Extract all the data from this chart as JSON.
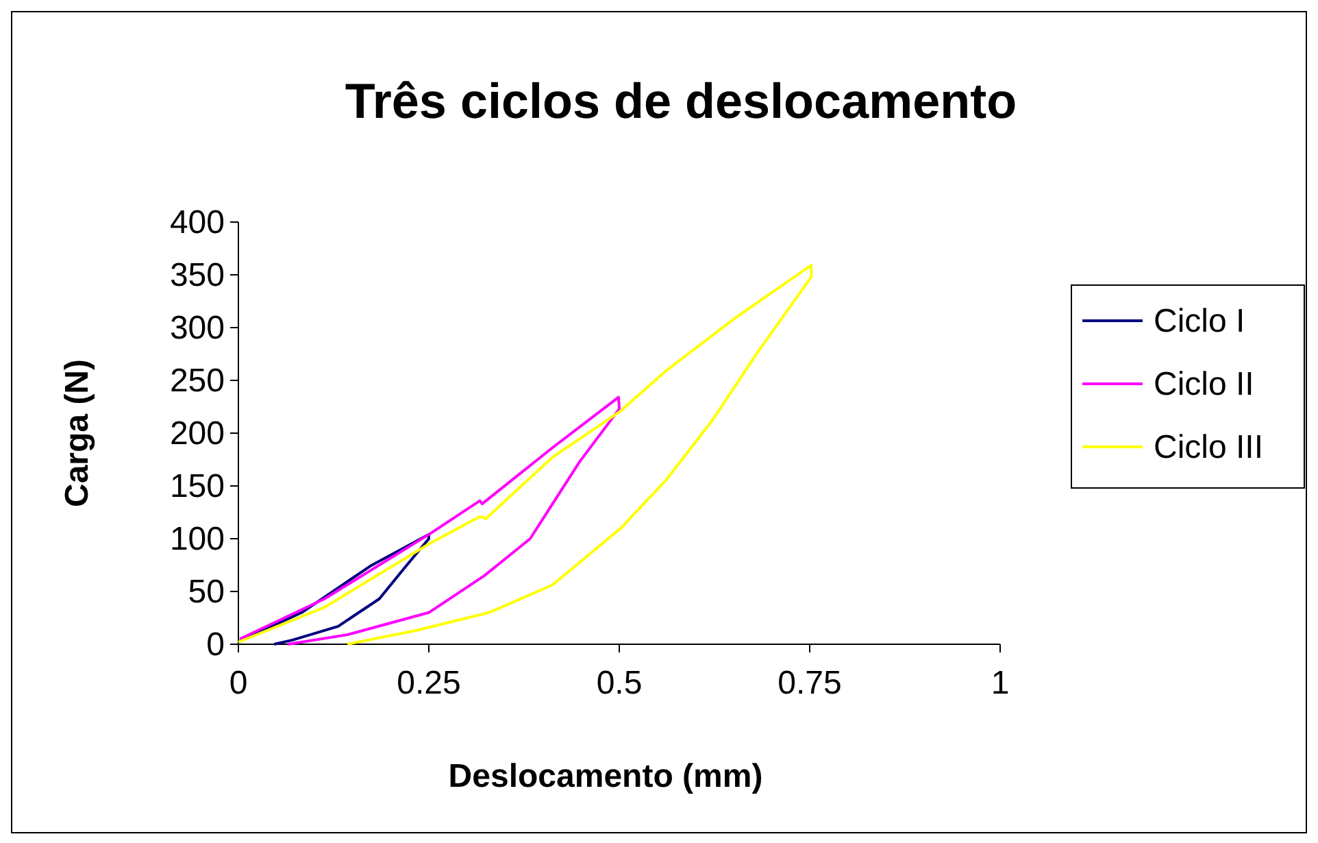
{
  "chart_data": {
    "type": "line",
    "title": "Três ciclos de deslocamento",
    "xlabel": "Deslocamento (mm)",
    "ylabel": "Carga (N)",
    "xlim": [
      0,
      1
    ],
    "xticks": [
      0,
      0.25,
      0.5,
      0.75,
      1
    ],
    "ylim": [
      0,
      400
    ],
    "yticks": [
      0,
      50,
      100,
      150,
      200,
      250,
      300,
      350,
      400
    ],
    "grid": false,
    "legend": "right",
    "marker": "none",
    "line_style": "solid",
    "series": [
      {
        "name": "Ciclo I",
        "color": "#000080",
        "x": [
          0.002,
          0.083,
          0.173,
          0.25,
          0.25,
          0.22,
          0.185,
          0.131,
          0.071,
          0.047
        ],
        "values": [
          3,
          30,
          74,
          104,
          100,
          74,
          43,
          17,
          4,
          0
        ]
      },
      {
        "name": "Ciclo II",
        "color": "#ff00ff",
        "x": [
          0.002,
          0.113,
          0.25,
          0.317,
          0.32,
          0.412,
          0.499,
          0.5,
          0.448,
          0.383,
          0.323,
          0.25,
          0.143,
          0.065
        ],
        "values": [
          5,
          43,
          104,
          136,
          133,
          186,
          234,
          223,
          173,
          100,
          65,
          30,
          9,
          0
        ]
      },
      {
        "name": "Ciclo III",
        "color": "#ffff00",
        "x": [
          0,
          0.113,
          0.25,
          0.317,
          0.325,
          0.412,
          0.5,
          0.563,
          0.652,
          0.748,
          0.752,
          0.752,
          0.682,
          0.622,
          0.562,
          0.502,
          0.412,
          0.329,
          0.233,
          0.143
        ],
        "values": [
          2,
          35,
          95,
          121,
          119,
          177,
          220,
          260,
          309,
          357,
          359,
          348,
          277,
          212,
          156,
          110,
          56,
          30,
          13,
          0
        ]
      }
    ]
  }
}
